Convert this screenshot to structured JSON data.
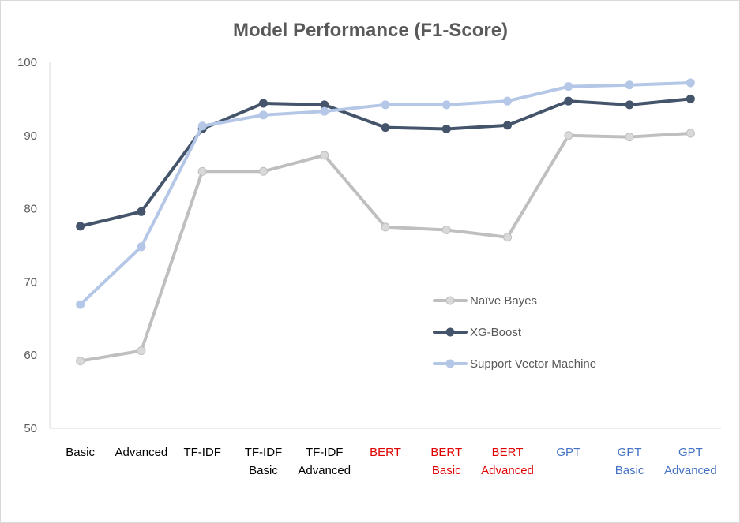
{
  "chart_data": {
    "type": "line",
    "title": "Model Performance (F1-Score)",
    "xlabel": "",
    "ylabel": "",
    "ylim": [
      50,
      100
    ],
    "yticks": [
      50,
      60,
      70,
      80,
      90,
      100
    ],
    "grid": false,
    "legend_position": "center-right",
    "categories": [
      {
        "lines": [
          "Basic"
        ],
        "color": "#000000"
      },
      {
        "lines": [
          "Advanced"
        ],
        "color": "#000000"
      },
      {
        "lines": [
          "TF-IDF"
        ],
        "color": "#000000"
      },
      {
        "lines": [
          "TF-IDF",
          "Basic"
        ],
        "color": "#000000"
      },
      {
        "lines": [
          "TF-IDF",
          "Advanced"
        ],
        "color": "#000000"
      },
      {
        "lines": [
          "BERT"
        ],
        "color": "#e00000"
      },
      {
        "lines": [
          "BERT",
          "Basic"
        ],
        "color": "#e00000"
      },
      {
        "lines": [
          "BERT",
          "Advanced"
        ],
        "color": "#e00000"
      },
      {
        "lines": [
          "GPT"
        ],
        "color": "#4472c4"
      },
      {
        "lines": [
          "GPT",
          "Basic"
        ],
        "color": "#4472c4"
      },
      {
        "lines": [
          "GPT",
          "Advanced"
        ],
        "color": "#4472c4"
      }
    ],
    "series": [
      {
        "name": "Naïve Bayes",
        "color": "#bfbfbf",
        "marker_color": "#d9d9d9",
        "values": [
          59.2,
          60.6,
          85.1,
          85.1,
          87.3,
          77.5,
          77.1,
          76.1,
          90.0,
          89.8,
          90.3
        ]
      },
      {
        "name": "XG-Boost",
        "color": "#44546a",
        "marker_color": "#44546a",
        "values": [
          77.6,
          79.6,
          90.9,
          94.4,
          94.2,
          91.1,
          90.9,
          91.4,
          94.7,
          94.2,
          95.0
        ]
      },
      {
        "name": "Support Vector Machine",
        "color": "#b4c7e7",
        "marker_color": "#b4c7e7",
        "values": [
          66.9,
          74.8,
          91.3,
          92.8,
          93.3,
          94.2,
          94.2,
          94.7,
          96.7,
          96.9,
          97.2
        ]
      }
    ]
  }
}
